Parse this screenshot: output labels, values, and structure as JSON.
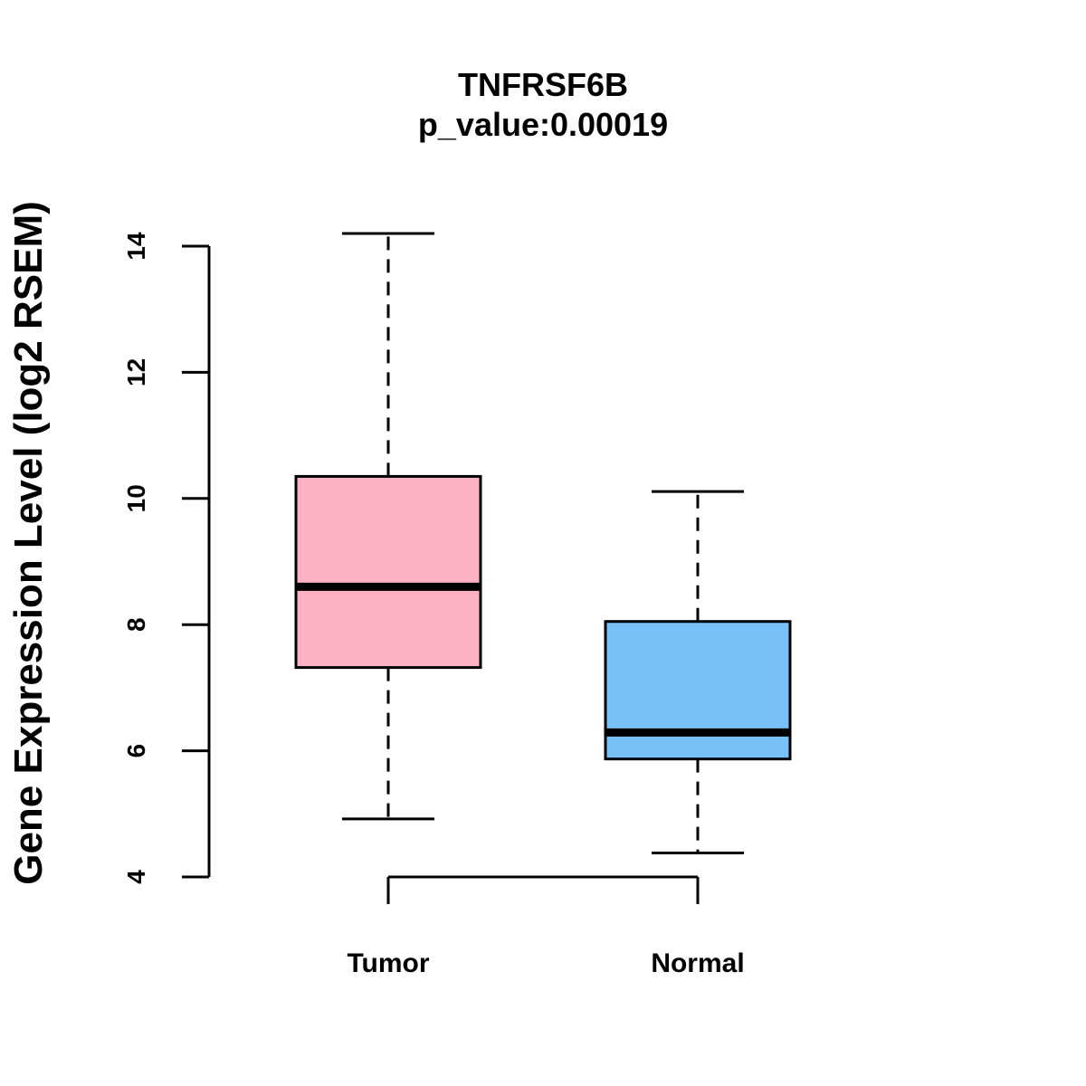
{
  "chart_data": {
    "type": "boxplot",
    "title": "TNFRSF6B",
    "subtitle": "p_value:0.00019",
    "xlabel": "",
    "ylabel": "Gene Expression Level (log2 RSEM)",
    "ylim": [
      4,
      14
    ],
    "yticks": [
      4,
      6,
      8,
      10,
      12,
      14
    ],
    "grid": false,
    "categories": [
      "Tumor",
      "Normal"
    ],
    "boxes": [
      {
        "name": "Tumor",
        "whisker_low": 4.92,
        "q1": 7.32,
        "median": 8.6,
        "q3": 10.35,
        "whisker_high": 14.2,
        "color": "#FDB1C4"
      },
      {
        "name": "Normal",
        "whisker_low": 4.38,
        "q1": 5.87,
        "median": 6.29,
        "q3": 8.05,
        "whisker_high": 10.11,
        "color": "#77C0F8"
      }
    ]
  }
}
